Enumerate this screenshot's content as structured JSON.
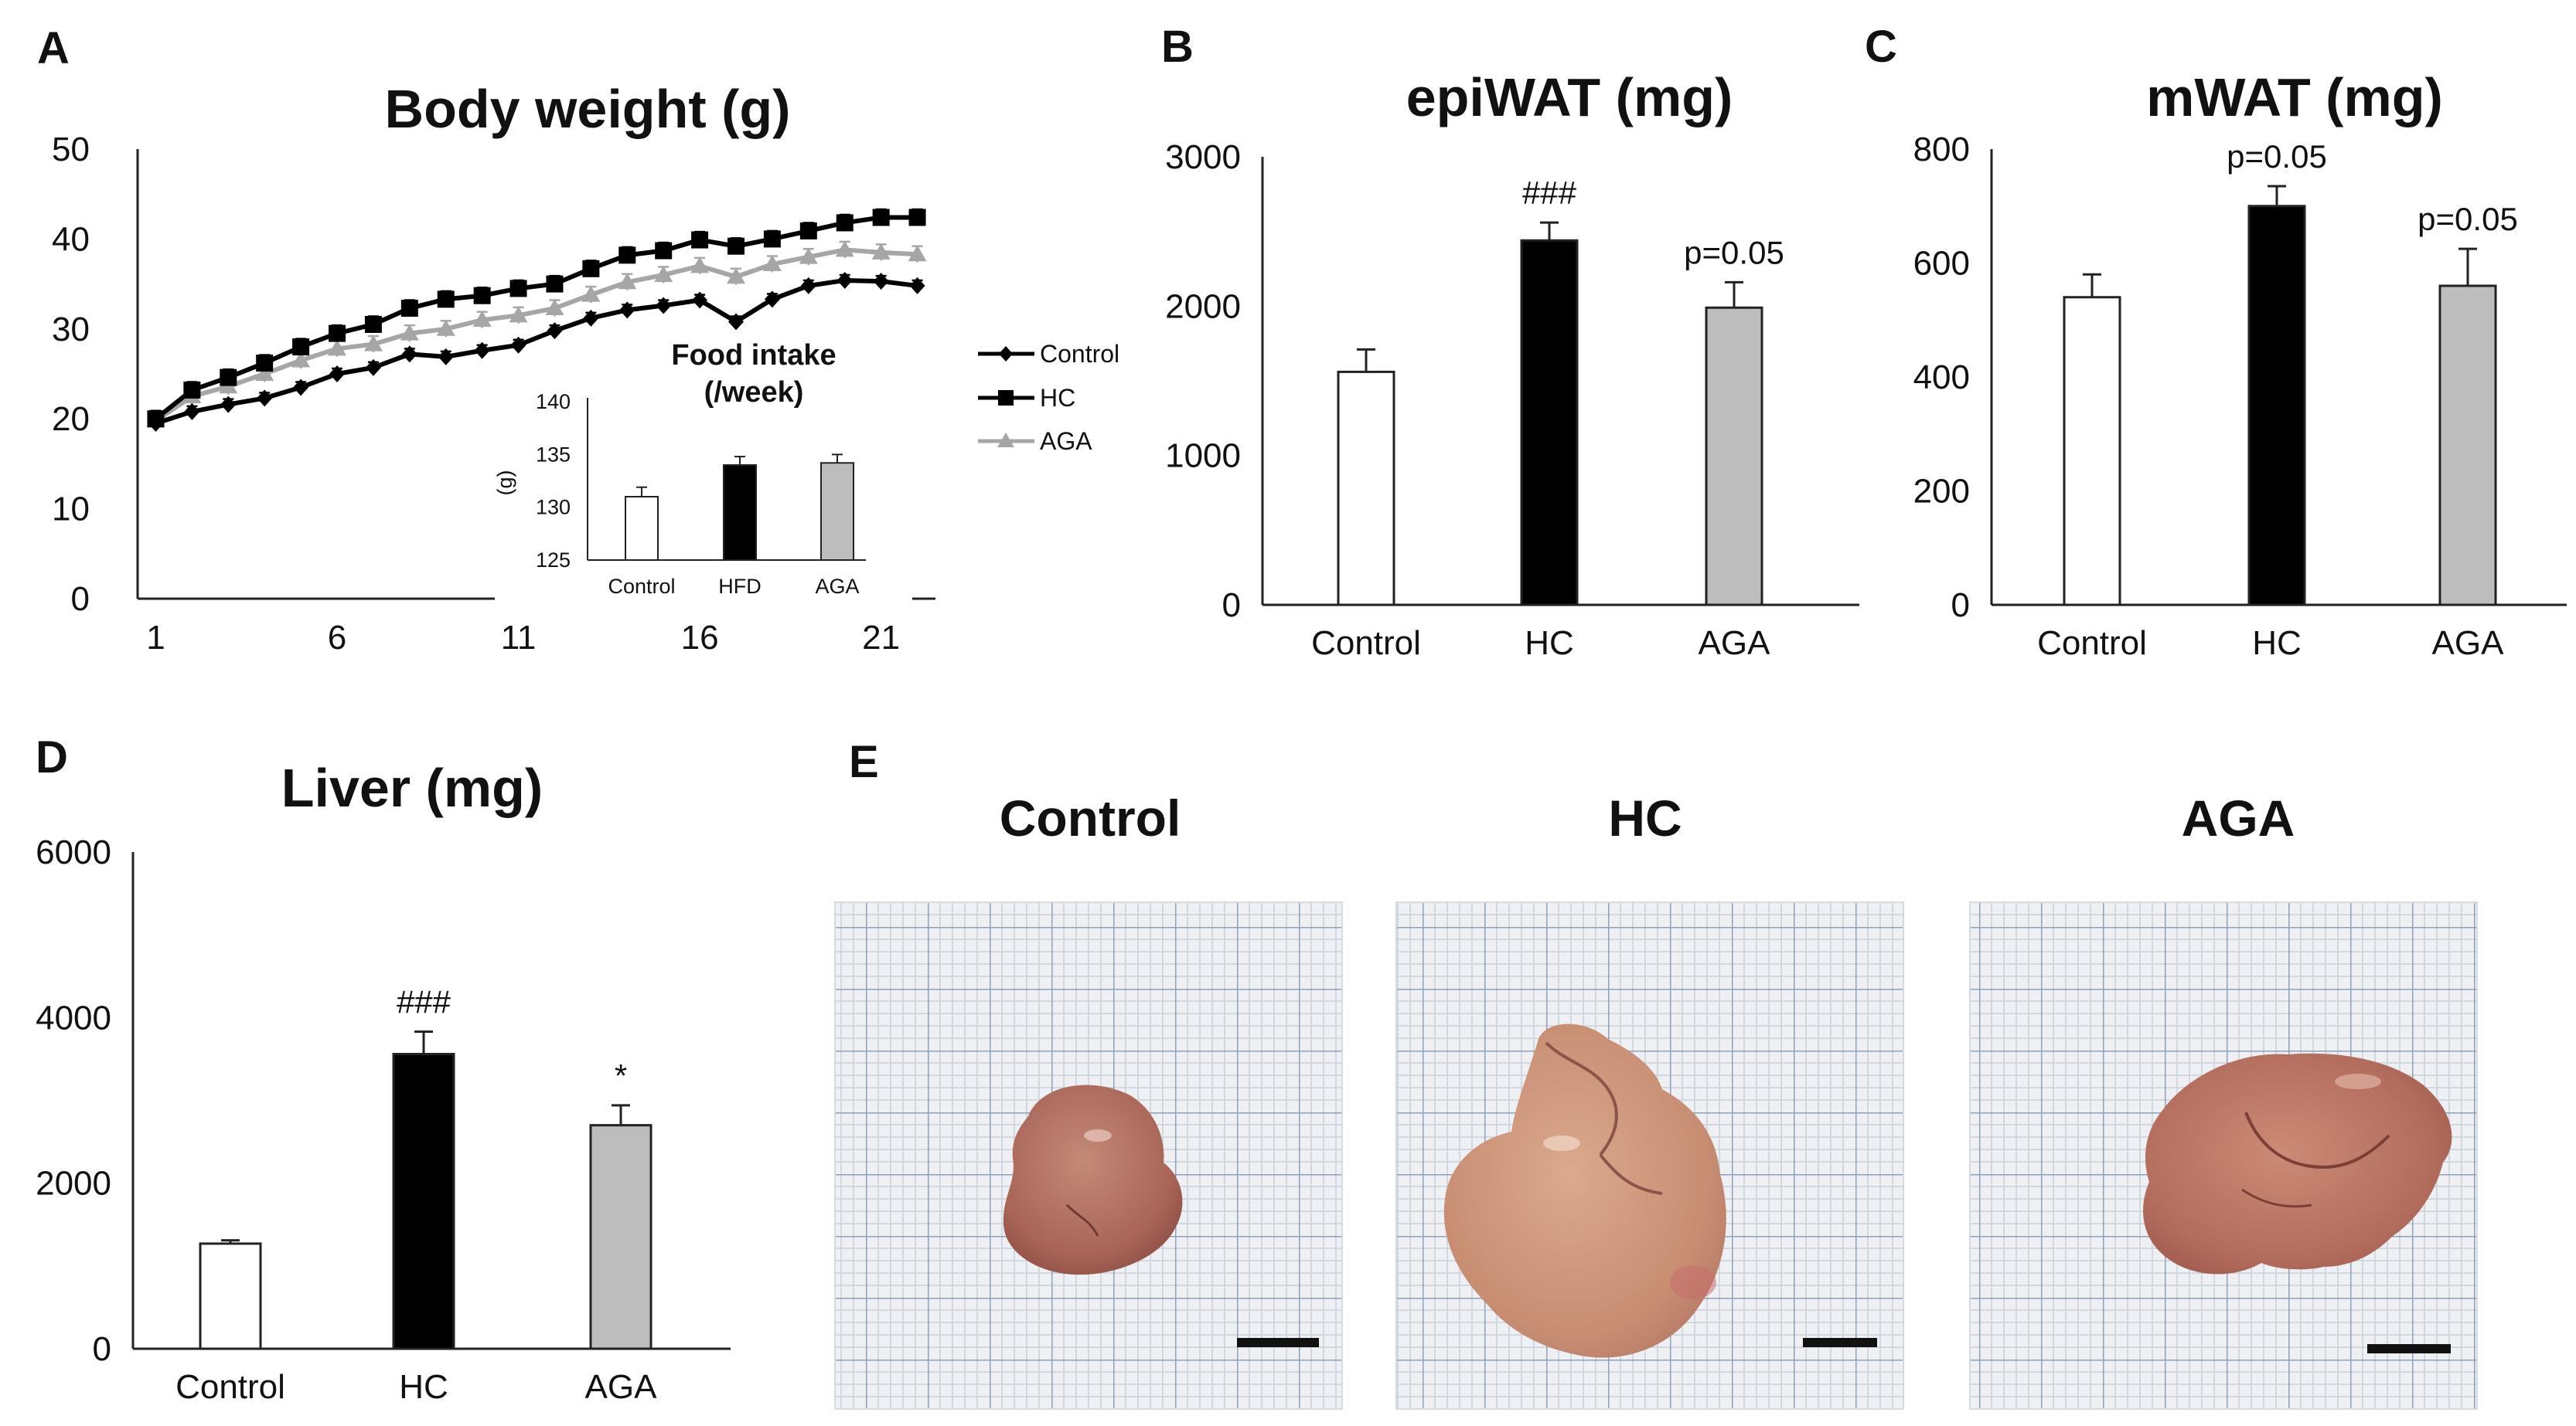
{
  "photos": {
    "letter": "E",
    "labels": [
      "Control",
      "HC",
      "AGA"
    ]
  },
  "colors": {
    "control": "#ffffff",
    "hc": "#000000",
    "aga": "#bdbdbd",
    "aga_line": "#a6a6a6"
  },
  "chart_data": [
    {
      "panel": "A",
      "type": "line",
      "title": "Body weight (g)",
      "xlabel": "",
      "ylabel": "",
      "x": [
        1,
        2,
        3,
        4,
        5,
        6,
        7,
        8,
        9,
        10,
        11,
        12,
        13,
        14,
        15,
        16,
        17,
        18,
        19,
        20,
        21,
        22
      ],
      "xticks": [
        "1",
        "6",
        "11",
        "16",
        "21"
      ],
      "xtick_values": [
        1,
        6,
        11,
        16,
        21
      ],
      "ylim": [
        0,
        50
      ],
      "yticks": [
        "0",
        "10",
        "20",
        "30",
        "40",
        "50"
      ],
      "ytick_values": [
        0,
        10,
        20,
        30,
        40,
        50
      ],
      "series": [
        {
          "name": "Control",
          "marker": "diamond",
          "values": [
            19.5,
            20.8,
            21.6,
            22.3,
            23.5,
            25.0,
            25.7,
            27.2,
            26.9,
            27.6,
            28.2,
            29.8,
            31.2,
            32.1,
            32.6,
            33.2,
            30.8,
            33.3,
            34.8,
            35.4,
            35.3,
            34.8
          ],
          "errors": [
            0.6,
            0.6,
            0.6,
            0.6,
            0.6,
            0.6,
            0.6,
            0.6,
            0.6,
            0.6,
            0.6,
            0.6,
            0.6,
            0.6,
            0.6,
            0.6,
            0.6,
            0.6,
            0.6,
            0.6,
            0.6,
            0.6
          ]
        },
        {
          "name": "HC",
          "marker": "square",
          "values": [
            20.0,
            23.2,
            24.6,
            26.2,
            28.0,
            29.5,
            30.5,
            32.3,
            33.3,
            33.7,
            34.5,
            35.0,
            36.7,
            38.2,
            38.7,
            39.9,
            39.2,
            40.0,
            40.9,
            41.8,
            42.4,
            42.4
          ],
          "errors": [
            0.9,
            0.9,
            0.9,
            0.9,
            0.9,
            0.9,
            0.9,
            0.9,
            0.9,
            0.9,
            0.9,
            0.9,
            0.9,
            0.9,
            0.9,
            0.9,
            0.9,
            0.9,
            0.9,
            0.9,
            0.9,
            0.9
          ]
        },
        {
          "name": "AGA",
          "marker": "triangle",
          "values": [
            19.8,
            22.5,
            23.6,
            25.0,
            26.5,
            27.8,
            28.3,
            29.5,
            30.0,
            31.0,
            31.5,
            32.3,
            33.8,
            35.2,
            36.0,
            37.0,
            35.8,
            37.2,
            38.0,
            38.8,
            38.5,
            38.3
          ],
          "errors": [
            0.9,
            0.9,
            0.9,
            0.9,
            0.9,
            0.9,
            0.9,
            0.9,
            0.9,
            0.9,
            0.9,
            0.9,
            0.9,
            0.9,
            0.9,
            0.9,
            0.9,
            0.9,
            0.9,
            0.9,
            0.9,
            0.9
          ]
        }
      ],
      "legend": [
        "Control",
        "HC",
        "AGA"
      ],
      "legend_position": "right",
      "inset": {
        "type": "bar",
        "title": "Food intake (/week)",
        "title_lines": [
          "Food intake",
          "(/week)"
        ],
        "ylabel": "(g)",
        "categories": [
          "Control",
          "HFD",
          "AGA"
        ],
        "values": [
          131.0,
          134.0,
          134.2
        ],
        "errors": [
          0.9,
          0.8,
          0.8
        ],
        "ylim": [
          125,
          140
        ],
        "yticks": [
          "125",
          "130",
          "135",
          "140"
        ],
        "ytick_values": [
          125,
          130,
          135,
          140
        ]
      }
    },
    {
      "panel": "B",
      "type": "bar",
      "title": "epiWAT (mg)",
      "categories": [
        "Control",
        "HC",
        "AGA"
      ],
      "values": [
        1560,
        2440,
        1990
      ],
      "errors": [
        150,
        120,
        170
      ],
      "annotations": [
        "",
        "###",
        "p=0.05"
      ],
      "ylim": [
        0,
        3000
      ],
      "yticks": [
        "0",
        "1000",
        "2000",
        "3000"
      ],
      "ytick_values": [
        0,
        1000,
        2000,
        3000
      ]
    },
    {
      "panel": "C",
      "type": "bar",
      "title": "mWAT (mg)",
      "categories": [
        "Control",
        "HC",
        "AGA"
      ],
      "values": [
        540,
        700,
        560
      ],
      "errors": [
        40,
        35,
        65
      ],
      "annotations": [
        "",
        "p=0.05",
        "p=0.05"
      ],
      "ylim": [
        0,
        800
      ],
      "yticks": [
        "0",
        "200",
        "400",
        "600",
        "800"
      ],
      "ytick_values": [
        0,
        200,
        400,
        600,
        800
      ]
    },
    {
      "panel": "D",
      "type": "bar",
      "title": "Liver (mg)",
      "categories": [
        "Control",
        "HC",
        "AGA"
      ],
      "values": [
        1270,
        3560,
        2700
      ],
      "errors": [
        40,
        270,
        240
      ],
      "annotations": [
        "",
        "###",
        "*"
      ],
      "ylim": [
        0,
        6000
      ],
      "yticks": [
        "0",
        "2000",
        "4000",
        "6000"
      ],
      "ytick_values": [
        0,
        2000,
        4000,
        6000
      ]
    }
  ]
}
